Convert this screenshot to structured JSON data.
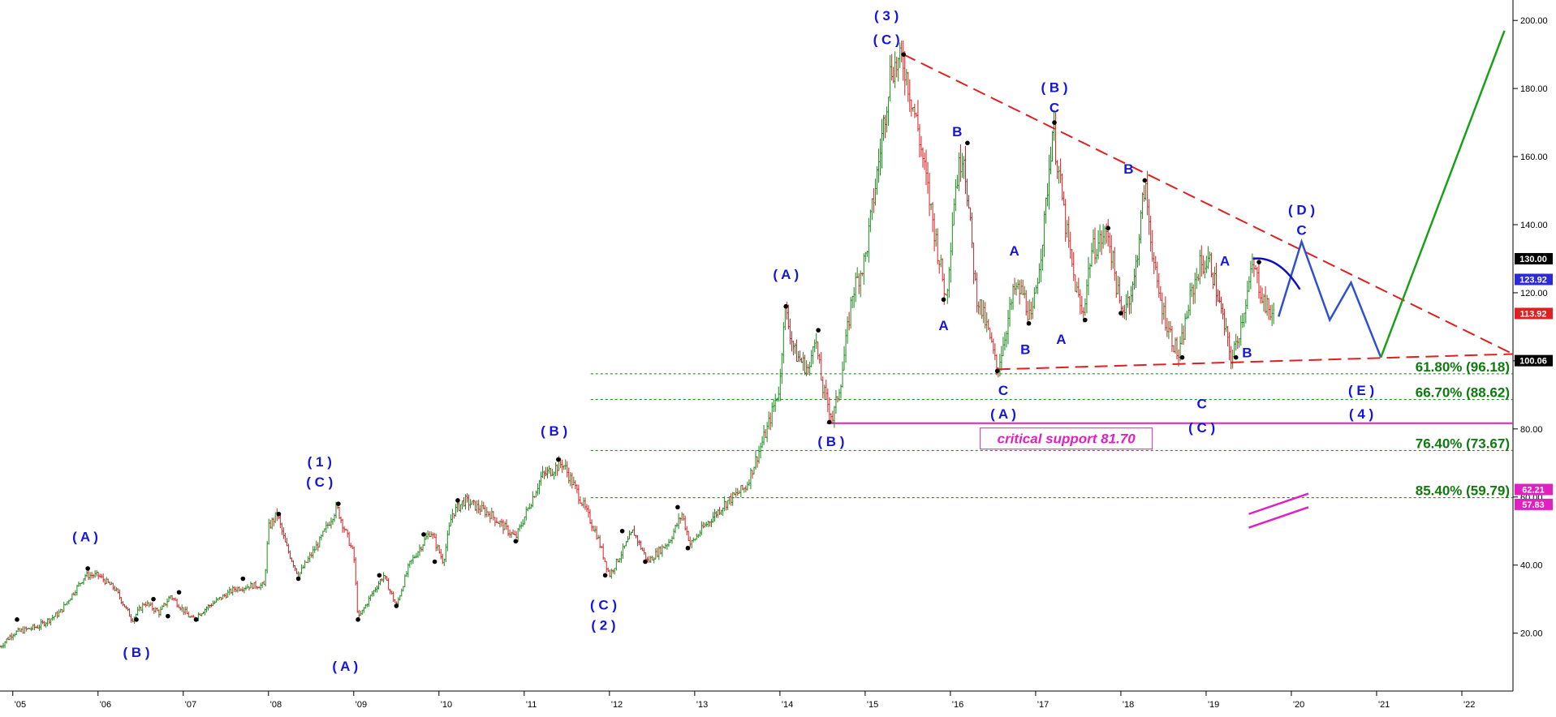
{
  "colors": {
    "up_candle": "#1a8a1a",
    "down_candle": "#d02020",
    "wave_label": "#1515e0",
    "fib": "#0f7a0f",
    "resistance": "#e02020",
    "support_line": "#e020c0",
    "projection": "#3050d0",
    "bullish_projection": "#1aa01a",
    "arc": "#1010c0"
  },
  "chart_data": {
    "type": "candlestick",
    "x_axis": {
      "unit": "year",
      "range": [
        2004.85,
        2022.6
      ],
      "tick_labels": [
        {
          "t": 2005,
          "label": "'05"
        },
        {
          "t": 2006,
          "label": "'06"
        },
        {
          "t": 2007,
          "label": "'07"
        },
        {
          "t": 2008,
          "label": "'08"
        },
        {
          "t": 2009,
          "label": "'09"
        },
        {
          "t": 2010,
          "label": "'10"
        },
        {
          "t": 2011,
          "label": "'11"
        },
        {
          "t": 2012,
          "label": "'12"
        },
        {
          "t": 2013,
          "label": "'13"
        },
        {
          "t": 2014,
          "label": "'14"
        },
        {
          "t": 2015,
          "label": "'15"
        },
        {
          "t": 2016,
          "label": "'16"
        },
        {
          "t": 2017,
          "label": "'17"
        },
        {
          "t": 2018,
          "label": "'18"
        },
        {
          "t": 2019,
          "label": "'19"
        },
        {
          "t": 2020,
          "label": "'20"
        },
        {
          "t": 2021,
          "label": "'21"
        },
        {
          "t": 2022,
          "label": "'22"
        }
      ]
    },
    "y_axis": {
      "range": [
        3,
        206
      ],
      "tick_labels": [
        {
          "v": 200,
          "label": "200.00"
        },
        {
          "v": 180,
          "label": "180.00"
        },
        {
          "v": 160,
          "label": "160.00"
        },
        {
          "v": 140,
          "label": "140.00"
        },
        {
          "v": 120,
          "label": "120.00"
        },
        {
          "v": 100,
          "label": "100.00"
        },
        {
          "v": 80,
          "label": "80.00"
        },
        {
          "v": 60,
          "label": "60.00"
        },
        {
          "v": 40,
          "label": "40.00"
        },
        {
          "v": 20,
          "label": "20.00"
        }
      ]
    },
    "price_path": [
      [
        2004.85,
        16
      ],
      [
        2005.0,
        20
      ],
      [
        2005.3,
        22
      ],
      [
        2005.55,
        26
      ],
      [
        2005.85,
        37
      ],
      [
        2006.0,
        37
      ],
      [
        2006.2,
        33
      ],
      [
        2006.4,
        24
      ],
      [
        2006.55,
        29
      ],
      [
        2006.72,
        26
      ],
      [
        2006.85,
        31
      ],
      [
        2007.1,
        24
      ],
      [
        2007.3,
        28
      ],
      [
        2007.6,
        33
      ],
      [
        2007.8,
        34
      ],
      [
        2007.95,
        34
      ],
      [
        2008.0,
        51
      ],
      [
        2008.1,
        55
      ],
      [
        2008.2,
        46
      ],
      [
        2008.35,
        37
      ],
      [
        2008.6,
        47
      ],
      [
        2008.8,
        57
      ],
      [
        2008.9,
        50
      ],
      [
        2009.0,
        43
      ],
      [
        2009.05,
        24
      ],
      [
        2009.2,
        31
      ],
      [
        2009.35,
        37
      ],
      [
        2009.5,
        28
      ],
      [
        2009.65,
        40
      ],
      [
        2009.9,
        50
      ],
      [
        2010.05,
        41
      ],
      [
        2010.15,
        55
      ],
      [
        2010.3,
        59
      ],
      [
        2010.6,
        55
      ],
      [
        2010.9,
        48
      ],
      [
        2011.05,
        57
      ],
      [
        2011.2,
        66
      ],
      [
        2011.45,
        70
      ],
      [
        2011.65,
        60
      ],
      [
        2011.85,
        49
      ],
      [
        2012.0,
        37
      ],
      [
        2012.15,
        44
      ],
      [
        2012.28,
        50
      ],
      [
        2012.45,
        41
      ],
      [
        2012.7,
        47
      ],
      [
        2012.85,
        55
      ],
      [
        2012.95,
        46
      ],
      [
        2013.1,
        51
      ],
      [
        2013.35,
        58
      ],
      [
        2013.6,
        63
      ],
      [
        2013.85,
        80
      ],
      [
        2014.0,
        93
      ],
      [
        2014.05,
        116
      ],
      [
        2014.18,
        102
      ],
      [
        2014.35,
        97
      ],
      [
        2014.4,
        109
      ],
      [
        2014.5,
        92
      ],
      [
        2014.62,
        83
      ],
      [
        2014.72,
        95
      ],
      [
        2014.85,
        120
      ],
      [
        2015.0,
        130
      ],
      [
        2015.15,
        157
      ],
      [
        2015.3,
        186
      ],
      [
        2015.45,
        188
      ],
      [
        2015.62,
        168
      ],
      [
        2015.8,
        140
      ],
      [
        2015.95,
        118
      ],
      [
        2016.05,
        150
      ],
      [
        2016.15,
        163
      ],
      [
        2016.3,
        120
      ],
      [
        2016.45,
        108
      ],
      [
        2016.55,
        97
      ],
      [
        2016.75,
        121
      ],
      [
        2016.85,
        120
      ],
      [
        2016.95,
        111
      ],
      [
        2017.1,
        140
      ],
      [
        2017.2,
        169
      ],
      [
        2017.35,
        140
      ],
      [
        2017.45,
        124
      ],
      [
        2017.55,
        113
      ],
      [
        2017.65,
        132
      ],
      [
        2017.85,
        138
      ],
      [
        2018.0,
        114
      ],
      [
        2018.15,
        122
      ],
      [
        2018.28,
        152
      ],
      [
        2018.42,
        122
      ],
      [
        2018.55,
        110
      ],
      [
        2018.68,
        101
      ],
      [
        2018.8,
        117
      ],
      [
        2018.92,
        128
      ],
      [
        2019.05,
        129
      ],
      [
        2019.3,
        100
      ],
      [
        2019.4,
        110
      ],
      [
        2019.55,
        128
      ],
      [
        2019.7,
        116
      ],
      [
        2019.8,
        113
      ]
    ],
    "pivots": [
      [
        2005.05,
        24
      ],
      [
        2005.88,
        39
      ],
      [
        2006.45,
        24
      ],
      [
        2006.65,
        30
      ],
      [
        2006.82,
        25
      ],
      [
        2006.95,
        32
      ],
      [
        2007.15,
        24
      ],
      [
        2007.7,
        36
      ],
      [
        2008.12,
        55
      ],
      [
        2008.35,
        36
      ],
      [
        2008.82,
        58
      ],
      [
        2009.05,
        24
      ],
      [
        2009.3,
        37
      ],
      [
        2009.5,
        28
      ],
      [
        2009.82,
        49
      ],
      [
        2009.95,
        41
      ],
      [
        2010.22,
        59
      ],
      [
        2010.9,
        47
      ],
      [
        2011.4,
        71
      ],
      [
        2011.95,
        37
      ],
      [
        2012.15,
        50
      ],
      [
        2012.42,
        41
      ],
      [
        2012.8,
        57
      ],
      [
        2012.92,
        45
      ],
      [
        2014.07,
        116
      ],
      [
        2014.45,
        109
      ],
      [
        2014.58,
        82
      ],
      [
        2015.45,
        190
      ],
      [
        2015.92,
        118
      ],
      [
        2016.2,
        164
      ],
      [
        2016.55,
        97
      ],
      [
        2016.92,
        111
      ],
      [
        2017.22,
        170
      ],
      [
        2017.58,
        112
      ],
      [
        2017.85,
        139
      ],
      [
        2018.0,
        114
      ],
      [
        2018.28,
        153
      ],
      [
        2018.72,
        101
      ],
      [
        2019.35,
        101
      ],
      [
        2019.62,
        129
      ]
    ],
    "wave_labels": [
      {
        "t": 2005.85,
        "v": 47,
        "text": "( A )"
      },
      {
        "t": 2006.45,
        "v": 13,
        "text": "( B )"
      },
      {
        "t": 2008.6,
        "v": 69,
        "text": "( 1 )"
      },
      {
        "t": 2008.6,
        "v": 63,
        "text": "( C )"
      },
      {
        "t": 2008.9,
        "v": 9,
        "text": "( A )"
      },
      {
        "t": 2011.35,
        "v": 78,
        "text": "( B )"
      },
      {
        "t": 2011.93,
        "v": 27,
        "text": "( C )"
      },
      {
        "t": 2011.93,
        "v": 21,
        "text": "( 2 )"
      },
      {
        "t": 2014.07,
        "v": 124,
        "text": "( A )"
      },
      {
        "t": 2014.6,
        "v": 75,
        "text": "( B )"
      },
      {
        "t": 2015.25,
        "v": 200,
        "text": "( 3 )"
      },
      {
        "t": 2015.25,
        "v": 193,
        "text": "( C )"
      },
      {
        "t": 2015.92,
        "v": 109,
        "text": "A"
      },
      {
        "t": 2016.08,
        "v": 166,
        "text": "B"
      },
      {
        "t": 2016.62,
        "v": 90,
        "text": "C"
      },
      {
        "t": 2016.62,
        "v": 83,
        "text": "( A )"
      },
      {
        "t": 2016.75,
        "v": 131,
        "text": "A"
      },
      {
        "t": 2016.88,
        "v": 102,
        "text": "B"
      },
      {
        "t": 2017.22,
        "v": 179,
        "text": "( B )"
      },
      {
        "t": 2017.22,
        "v": 173,
        "text": "C"
      },
      {
        "t": 2017.3,
        "v": 105,
        "text": "A"
      },
      {
        "t": 2018.09,
        "v": 155,
        "text": "B"
      },
      {
        "t": 2018.95,
        "v": 86,
        "text": "C"
      },
      {
        "t": 2018.95,
        "v": 79,
        "text": "( C )"
      },
      {
        "t": 2019.22,
        "v": 128,
        "text": "A"
      },
      {
        "t": 2019.48,
        "v": 101,
        "text": "B"
      },
      {
        "t": 2020.12,
        "v": 143,
        "text": "( D )"
      },
      {
        "t": 2020.12,
        "v": 137,
        "text": "C"
      },
      {
        "t": 2020.82,
        "v": 90,
        "text": "( E )"
      },
      {
        "t": 2020.82,
        "v": 83,
        "text": "( 4 )"
      }
    ],
    "resistance_line": [
      [
        2015.45,
        190
      ],
      [
        2022.6,
        102
      ]
    ],
    "support_trend": [
      [
        2016.55,
        97.5
      ],
      [
        2022.6,
        102
      ]
    ],
    "critical_support": {
      "level": 81.7,
      "from": 2014.55,
      "to": 2022.6,
      "label": "critical support 81.70"
    },
    "fib_levels": [
      {
        "level": 96.18,
        "label": "61.80% (96.18)",
        "from": 2011.78
      },
      {
        "level": 88.62,
        "label": "66.70% (88.62)",
        "from": 2011.78
      },
      {
        "level": 73.67,
        "label": "76.40% (73.67)",
        "from": 2011.78
      },
      {
        "level": 59.79,
        "label": "85.40% (59.79)",
        "from": 2011.78
      }
    ],
    "projection_path": [
      [
        2019.85,
        113
      ],
      [
        2020.12,
        135
      ],
      [
        2020.45,
        112
      ],
      [
        2020.7,
        123
      ],
      [
        2021.05,
        101
      ]
    ],
    "bullish_projection": [
      [
        2021.05,
        101
      ],
      [
        2022.5,
        197
      ]
    ],
    "arc_points": [
      [
        2019.55,
        130
      ],
      [
        2019.85,
        127
      ],
      [
        2020.1,
        121
      ]
    ],
    "magenta_marks": [
      [
        [
          2019.5,
          55
        ],
        [
          2020.2,
          61
        ]
      ],
      [
        [
          2019.5,
          51
        ],
        [
          2020.2,
          57
        ]
      ]
    ],
    "price_tags": [
      {
        "v": 130.0,
        "label": "130.00",
        "bg": "#000000"
      },
      {
        "v": 123.92,
        "label": "123.92",
        "bg": "#2a2ad8"
      },
      {
        "v": 113.92,
        "label": "113.92",
        "bg": "#e02020"
      },
      {
        "v": 100.06,
        "label": "100.06",
        "bg": "#000000"
      },
      {
        "v": 62.21,
        "label": "62.21",
        "bg": "#e020c0"
      },
      {
        "v": 57.83,
        "label": "57.83",
        "bg": "#e020c0"
      }
    ]
  }
}
